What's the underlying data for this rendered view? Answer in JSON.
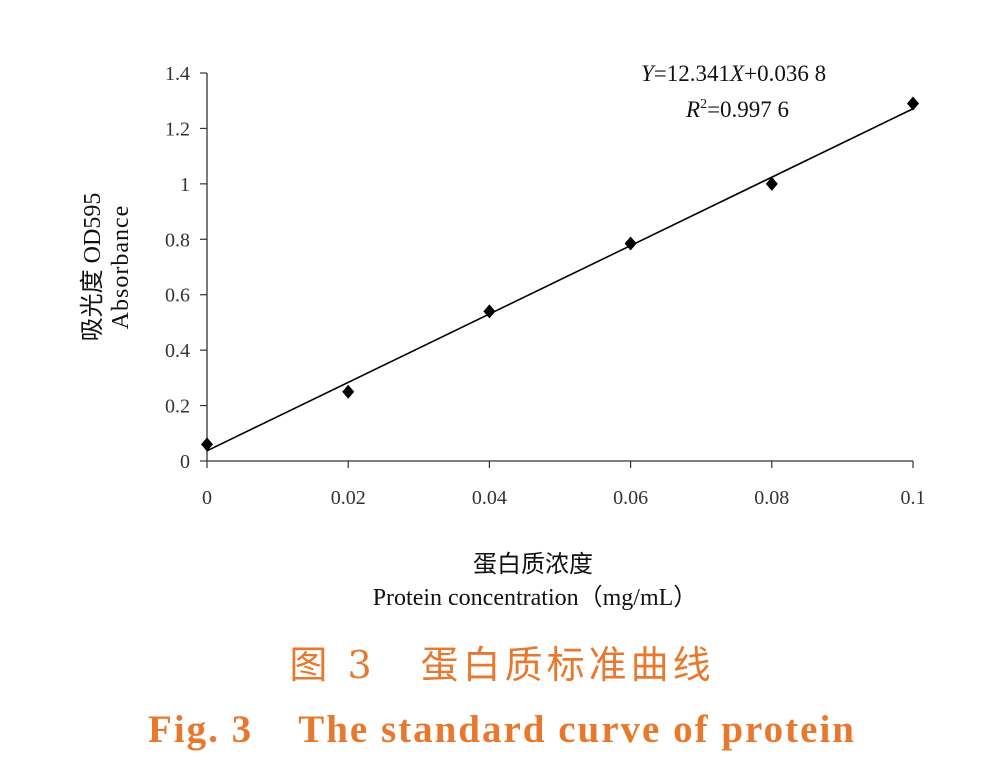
{
  "chart_data": {
    "type": "scatter",
    "x": [
      0,
      0.02,
      0.04,
      0.06,
      0.08,
      0.1
    ],
    "y": [
      0.06,
      0.25,
      0.54,
      0.785,
      1.0,
      1.29
    ],
    "xlim": [
      0,
      0.1
    ],
    "ylim": [
      0,
      1.4
    ],
    "x_tick_values": [
      0,
      0.02,
      0.04,
      0.06,
      0.08,
      0.1
    ],
    "x_tick_labels": [
      "0",
      "0.02",
      "0.04",
      "0.06",
      "0.08",
      "0.1"
    ],
    "y_tick_values": [
      0,
      0.2,
      0.4,
      0.6,
      0.8,
      1.0,
      1.2,
      1.4
    ],
    "y_tick_labels": [
      "0",
      "0.2",
      "0.4",
      "0.6",
      "0.8",
      "1",
      "1.2",
      "1.4"
    ],
    "xlabel": {
      "cn": "蛋白质浓度",
      "en": "Protein concentration（mg/mL）"
    },
    "ylabel": {
      "cn": "吸光度 OD595",
      "en": "Absorbance"
    },
    "trendline": {
      "slope": 12.341,
      "intercept": 0.0368
    },
    "equation": {
      "y_var": "Y",
      "coef": "=12.341",
      "x_var": "X",
      "const": "+0.036 8"
    },
    "r_squared": {
      "r_var": "R",
      "sup": "2",
      "value": "=0.997 6"
    },
    "grid": false,
    "legend": "none"
  },
  "caption": {
    "cn_label": "图 3",
    "cn_title": "蛋白质标准曲线",
    "en_label": "Fig. 3",
    "en_title": "The standard curve of protein"
  },
  "colors": {
    "caption": "#e8782e",
    "ink": "#000000",
    "axis": "#333333",
    "tick_text": "#333333"
  }
}
